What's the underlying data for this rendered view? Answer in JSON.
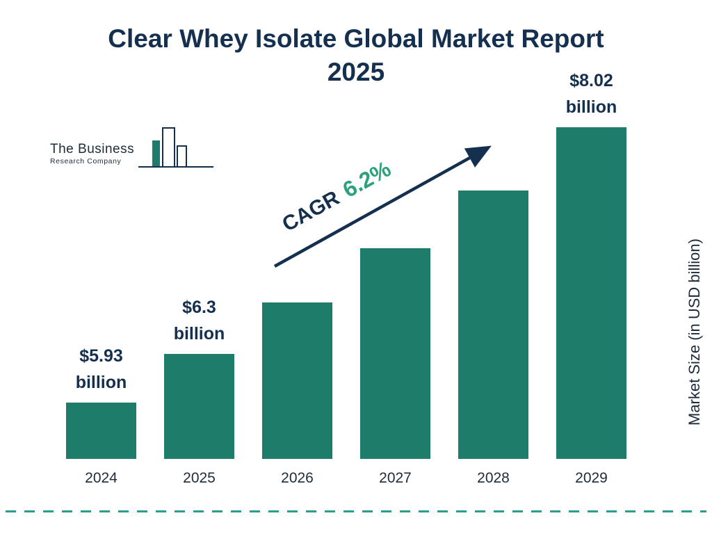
{
  "title": {
    "line1": "Clear Whey Isolate Global Market Report",
    "line2": "2025"
  },
  "logo": {
    "name_line1": "The Business",
    "name_line2": "Research Company"
  },
  "annotation": {
    "cagr_label": "CAGR",
    "cagr_value": "6.2%"
  },
  "y_axis_title": "Market Size (in USD billion)",
  "colors": {
    "bar": "#1e7c6b",
    "navy": "#15304e",
    "cagr_green": "#2ba17c",
    "dashed_line": "#2a9d8f"
  },
  "chart_data": {
    "type": "bar",
    "title": "Clear Whey Isolate Global Market Report 2025",
    "categories": [
      "2024",
      "2025",
      "2026",
      "2027",
      "2028",
      "2029"
    ],
    "values": [
      5.93,
      6.3,
      6.69,
      7.1,
      7.54,
      8.02
    ],
    "bar_labels": [
      [
        "$5.93",
        "billion"
      ],
      [
        "$6.3",
        "billion"
      ],
      null,
      null,
      null,
      [
        "$8.02",
        "billion"
      ]
    ],
    "xlabel": "",
    "ylabel": "Market Size (in USD billion)",
    "ylim": [
      5.5,
      8.02
    ],
    "unit": "USD billion",
    "cagr": "6.2%",
    "grid": false,
    "legend": "none"
  }
}
